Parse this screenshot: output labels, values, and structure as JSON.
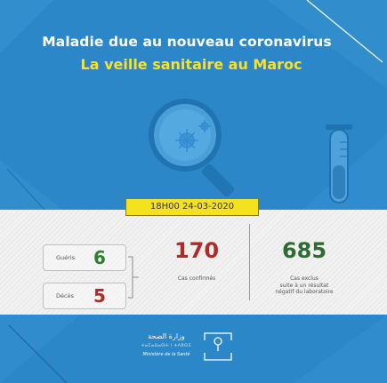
{
  "header": {
    "title": "Maladie due au nouveau coronavirus",
    "subtitle": "La veille sanitaire au Maroc"
  },
  "report": {
    "datetime": "18H00  24-03-2020"
  },
  "stats": {
    "recovered": {
      "label": "Guéris",
      "value": "6"
    },
    "deaths": {
      "label": "Décès",
      "value": "5"
    },
    "confirmed": {
      "label": "Cas confirmés",
      "value": "170"
    },
    "excluded": {
      "label_line1": "Cas exclus",
      "label_line2": "suite à un résultat",
      "label_line3": "négatif du laboratoire",
      "value": "685"
    }
  },
  "ministry": {
    "name_ar": "وزارة الصحة",
    "name_tifinagh": "ⵜⴰⵎⴰⵡⴰⵙⵜ ⵏ ⵜⴷⵓⵙⵉ",
    "name_fr": "Ministère de la Santé"
  },
  "colors": {
    "panel_blue": "#2b87c8",
    "title_yellow": "#f7e12a",
    "badge_yellow": "#f5e21f",
    "recovered_green": "#2f7d32",
    "deaths_red": "#b02a2a",
    "confirmed_red": "#b02a2a",
    "excluded_green": "#2f6b34"
  },
  "icons": [
    "magnifier-virus-icon",
    "test-tube-icon",
    "ministry-logo-icon"
  ]
}
